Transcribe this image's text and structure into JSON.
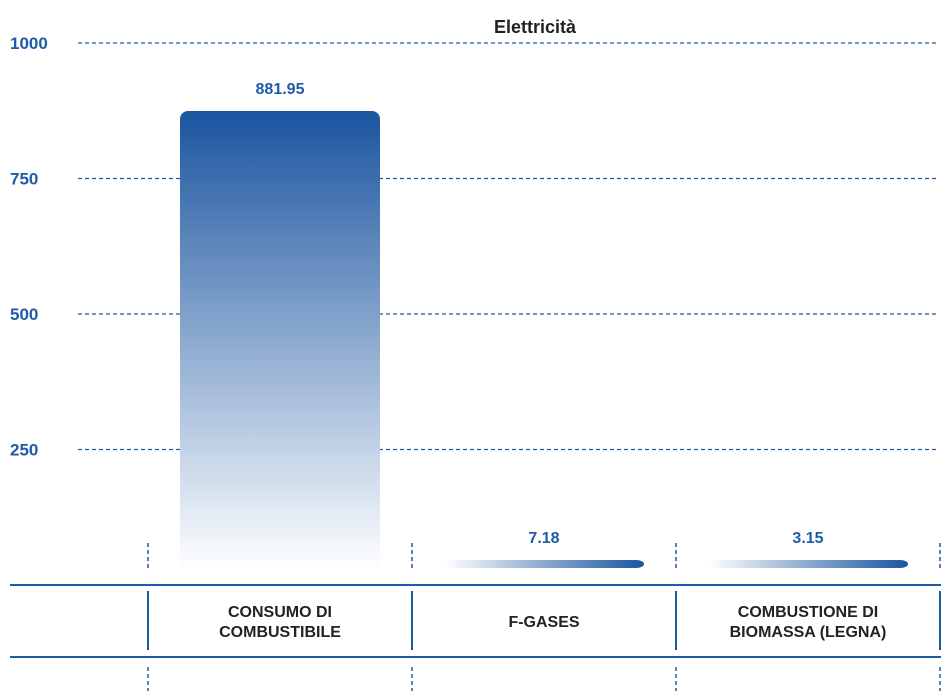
{
  "chart_data": {
    "type": "bar",
    "title": "Elettricità",
    "categories": [
      [
        "CONSUMO DI",
        "COMBUSTIBILE"
      ],
      [
        "F-GASES"
      ],
      [
        "COMBUSTIONE DI",
        "BIOMASSA (LEGNA)"
      ]
    ],
    "values": [
      881.95,
      7.18,
      3.15
    ],
    "value_labels": [
      "881.95",
      "7.18",
      "3.15"
    ],
    "y_ticks": [
      250,
      500,
      750,
      1000
    ],
    "ylim": [
      0,
      1000
    ],
    "grid": true,
    "colors": {
      "accent": "#1f5ba6",
      "bar_top": "#1a55a0",
      "bar_bottom": "#ffffff",
      "text": "#222222"
    }
  }
}
